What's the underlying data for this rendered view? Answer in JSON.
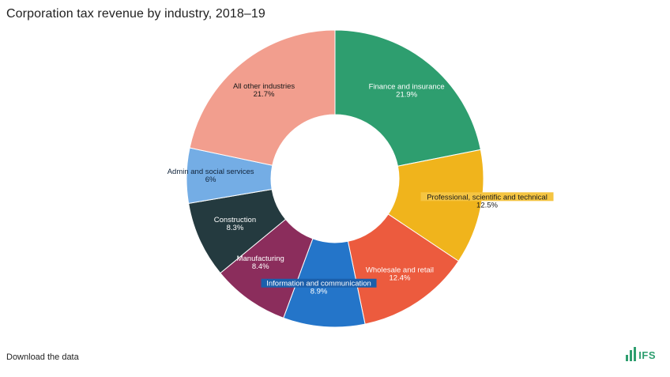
{
  "header": {
    "title": "Corporation tax revenue by industry, 2018–19"
  },
  "footer": {
    "download_label": "Download the data",
    "logo_text": "IFS"
  },
  "chart_data": {
    "type": "pie",
    "variant": "donut",
    "title": "Corporation tax revenue by industry, 2018–19",
    "unit": "%",
    "slices": [
      {
        "label": "Finance and insurance",
        "value": 21.9,
        "display": "21.9%",
        "color": "#2e9e6f"
      },
      {
        "label": "Professional, scientific and technical",
        "value": 12.5,
        "display": "12.5%",
        "color": "#f0b41c"
      },
      {
        "label": "Wholesale and retail",
        "value": 12.4,
        "display": "12.4%",
        "color": "#ec5b3e"
      },
      {
        "label": "Information and communication",
        "value": 8.9,
        "display": "8.9%",
        "color": "#2475c9"
      },
      {
        "label": "Manufacturing",
        "value": 8.4,
        "display": "8.4%",
        "color": "#8b2d5c"
      },
      {
        "label": "Construction",
        "value": 8.3,
        "display": "8.3%",
        "color": "#243a3f"
      },
      {
        "label": "Admin and social services",
        "value": 6,
        "display": "6%",
        "color": "#74ade5"
      },
      {
        "label": "All other industries",
        "value": 21.7,
        "display": "21.7%",
        "color": "#f29e8e"
      }
    ]
  }
}
